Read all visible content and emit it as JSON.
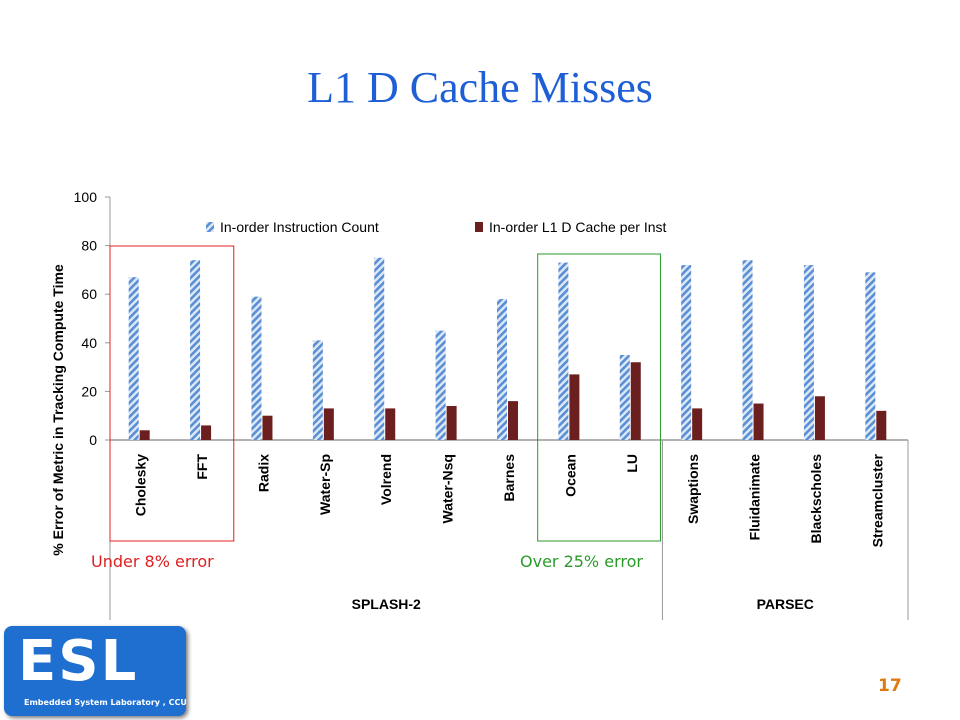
{
  "slide": {
    "title": "L1 D Cache Misses",
    "page_number": "17",
    "logo_text": "ESL",
    "logo_subtext": "Embedded System Laboratory , CCU"
  },
  "annotations": {
    "under": "Under 8% error",
    "over": "Over 25% error",
    "under_color": "#e02020",
    "over_color": "#2a9a2a"
  },
  "chart_data": {
    "type": "bar",
    "title": "",
    "xlabel": "",
    "ylabel": "% Error of Metric in Tracking Compute Time",
    "ylim": [
      0,
      100
    ],
    "yticks": [
      0,
      20,
      40,
      60,
      80,
      100
    ],
    "grid": false,
    "legend_position": "top",
    "categories": [
      "Cholesky",
      "FFT",
      "Radix",
      "Water-Sp",
      "Volrend",
      "Water-Nsq",
      "Barnes",
      "Ocean",
      "LU",
      "Swaptions",
      "Fluidanimate",
      "Blackscholes",
      "Streamcluster"
    ],
    "groups": [
      {
        "name": "SPLASH-2",
        "count": 9
      },
      {
        "name": "PARSEC",
        "count": 4
      }
    ],
    "series": [
      {
        "name": "In-order Instruction Count",
        "color": "#5b8fd4",
        "pattern": "diagonal-stripes",
        "values": [
          67,
          74,
          59,
          41,
          75,
          45,
          58,
          73,
          35,
          72,
          74,
          72,
          69
        ]
      },
      {
        "name": "In-order L1 D Cache per Inst",
        "color": "#6b1f1f",
        "pattern": "solid",
        "values": [
          4,
          6,
          10,
          13,
          13,
          14,
          16,
          27,
          32,
          13,
          15,
          18,
          12
        ]
      }
    ]
  }
}
